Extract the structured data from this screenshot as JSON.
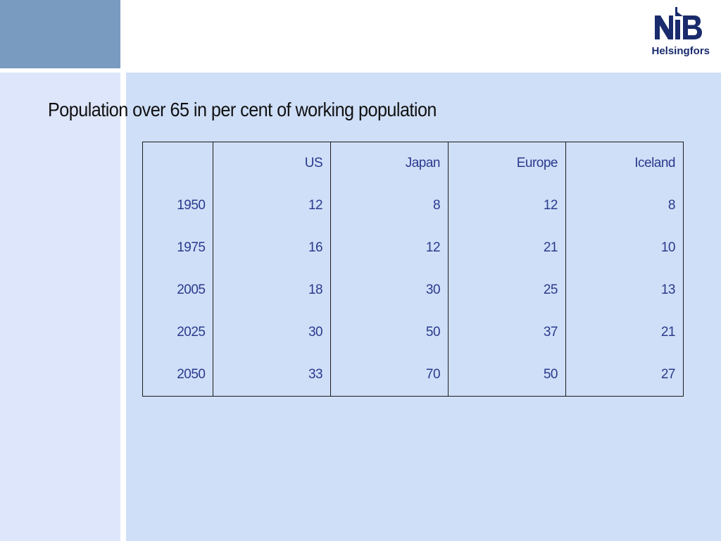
{
  "colors": {
    "corner_block": "#7a9bc0",
    "left_strip": "#dde6fb",
    "main_panel": "#cfdff8",
    "logo_navy": "#1a2b6d",
    "table_text": "#2a3a8c",
    "title_text": "#111111"
  },
  "logo": {
    "mark_text": "NIB",
    "caption": "Helsingfors"
  },
  "slide": {
    "title": "Population over 65 in per cent of  working population"
  },
  "table": {
    "headers": [
      "",
      "US",
      "Japan",
      "Europe",
      "Iceland"
    ],
    "rows": [
      [
        "1950",
        "12",
        "8",
        "12",
        "8"
      ],
      [
        "1975",
        "16",
        "12",
        "21",
        "10"
      ],
      [
        "2005",
        "18",
        "30",
        "25",
        "13"
      ],
      [
        "2025",
        "30",
        "50",
        "37",
        "21"
      ],
      [
        "2050",
        "33",
        "70",
        "50",
        "27"
      ]
    ]
  }
}
